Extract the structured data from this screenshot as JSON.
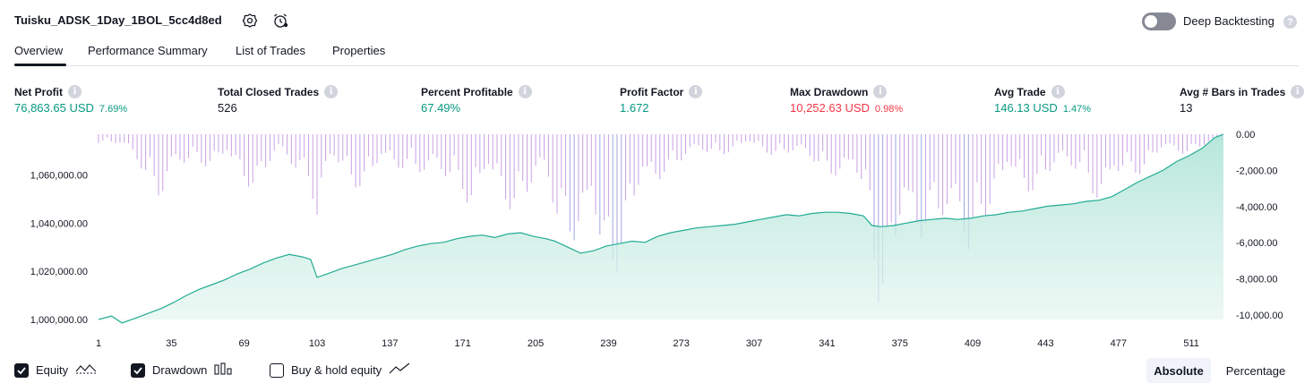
{
  "header": {
    "title": "Tuisku_ADSK_1Day_1BOL_5cc4d8ed",
    "deep_backtesting_label": "Deep Backtesting",
    "deep_backtesting_on": false
  },
  "tabs": [
    {
      "label": "Overview",
      "active": true
    },
    {
      "label": "Performance Summary",
      "active": false
    },
    {
      "label": "List of Trades",
      "active": false
    },
    {
      "label": "Properties",
      "active": false
    }
  ],
  "metrics": [
    {
      "label": "Net Profit",
      "value": "76,863.65 USD",
      "pct": "7.69%",
      "color": "#089981"
    },
    {
      "label": "Total Closed Trades",
      "value": "526",
      "pct": "",
      "color": "#131722"
    },
    {
      "label": "Percent Profitable",
      "value": "67.49%",
      "pct": "",
      "color": "#089981"
    },
    {
      "label": "Profit Factor",
      "value": "1.672",
      "pct": "",
      "color": "#089981"
    },
    {
      "label": "Max Drawdown",
      "value": "10,252.63 USD",
      "pct": "0.98%",
      "color": "#f23645"
    },
    {
      "label": "Avg Trade",
      "value": "146.13 USD",
      "pct": "1.47%",
      "color": "#089981"
    },
    {
      "label": "Avg # Bars in Trades",
      "value": "13",
      "pct": "",
      "color": "#131722"
    }
  ],
  "chart_data": {
    "type": "area",
    "x_ticks": [
      "1",
      "35",
      "69",
      "103",
      "137",
      "171",
      "205",
      "239",
      "273",
      "307",
      "341",
      "375",
      "409",
      "443",
      "477",
      "511"
    ],
    "x_range": [
      1,
      526
    ],
    "left_axis_ticks": [
      "1,060,000.00",
      "1,040,000.00",
      "1,020,000.00",
      "1,000,000.00"
    ],
    "left_ylim": [
      1000000,
      1076863.65
    ],
    "right_axis_ticks": [
      "0.00",
      "-2,000.00",
      "-4,000.00",
      "-6,000.00",
      "-8,000.00",
      "-10,000.00"
    ],
    "right_ylim": [
      -10252.63,
      0
    ],
    "colors": {
      "equity": "#22ab94",
      "equity_fill": "#cdeee6",
      "drawdown": "#c9a0e6",
      "drawdown_deep": "#9fa6e0",
      "axis_text": "#131722"
    },
    "series": [
      {
        "name": "Equity",
        "x": [
          1,
          7,
          12,
          18,
          24,
          30,
          36,
          42,
          48,
          54,
          60,
          66,
          72,
          78,
          84,
          90,
          96,
          100,
          103,
          108,
          114,
          120,
          126,
          132,
          138,
          144,
          150,
          156,
          162,
          168,
          174,
          180,
          186,
          192,
          198,
          204,
          210,
          214,
          220,
          226,
          232,
          238,
          244,
          250,
          256,
          262,
          268,
          274,
          280,
          286,
          292,
          298,
          304,
          310,
          316,
          322,
          328,
          334,
          340,
          346,
          352,
          358,
          362,
          366,
          372,
          378,
          384,
          390,
          396,
          402,
          408,
          414,
          420,
          426,
          432,
          438,
          444,
          450,
          456,
          462,
          468,
          474,
          480,
          486,
          492,
          498,
          504,
          510,
          516,
          522,
          526
        ],
        "values": [
          1000000,
          1001500,
          998500,
          1000500,
          1002500,
          1004500,
          1007000,
          1010000,
          1012500,
          1014500,
          1016500,
          1019000,
          1021000,
          1023500,
          1025500,
          1027000,
          1026000,
          1025000,
          1017500,
          1019000,
          1021000,
          1022500,
          1024000,
          1025500,
          1027000,
          1029000,
          1030500,
          1031500,
          1032000,
          1033500,
          1034500,
          1035000,
          1034000,
          1035500,
          1036000,
          1034500,
          1033500,
          1032500,
          1030000,
          1027500,
          1028500,
          1030500,
          1031500,
          1032500,
          1032000,
          1034500,
          1036000,
          1037000,
          1038000,
          1038500,
          1039000,
          1039500,
          1040500,
          1041500,
          1042500,
          1043500,
          1043000,
          1044000,
          1044500,
          1044500,
          1044000,
          1043000,
          1039000,
          1038500,
          1039000,
          1040000,
          1041000,
          1041500,
          1042000,
          1041500,
          1042000,
          1043000,
          1043500,
          1044500,
          1045000,
          1046000,
          1047000,
          1047500,
          1048000,
          1049000,
          1049500,
          1051000,
          1054000,
          1057000,
          1059500,
          1062000,
          1065500,
          1068000,
          1071000,
          1075500,
          1076864
        ]
      },
      {
        "name": "Drawdown",
        "x": [
          5,
          20,
          30,
          45,
          65,
          75,
          85,
          100,
          103,
          110,
          125,
          145,
          160,
          170,
          175,
          185,
          200,
          210,
          215,
          225,
          232,
          238,
          245,
          255,
          265,
          275,
          290,
          305,
          320,
          335,
          345,
          352,
          360,
          364,
          368,
          372,
          376,
          380,
          384,
          388,
          392,
          396,
          400,
          404,
          408,
          412,
          420,
          430,
          440,
          450,
          460,
          466,
          472,
          480,
          490,
          500,
          510,
          518,
          522
        ],
        "values": [
          -500,
          -1800,
          -4300,
          -1500,
          -2600,
          -3200,
          -1500,
          -2900,
          -5800,
          -2400,
          -3200,
          -1900,
          -3400,
          -2800,
          -4800,
          -3900,
          -4500,
          -3200,
          -5500,
          -6700,
          -8400,
          -9600,
          -6800,
          -4800,
          -2300,
          -1600,
          -1200,
          -900,
          -1300,
          -1800,
          -2600,
          -3600,
          -4300,
          -9000,
          -10252,
          -9600,
          -8500,
          -7400,
          -6600,
          -5400,
          -5100,
          -5600,
          -7600,
          -8200,
          -8800,
          -4800,
          -4200,
          -3600,
          -3100,
          -2600,
          -2100,
          -3900,
          -5200,
          -2500,
          -2100,
          -1300,
          -1100,
          -700,
          -500
        ]
      }
    ]
  },
  "legend": {
    "equity": {
      "label": "Equity",
      "checked": true
    },
    "drawdown": {
      "label": "Drawdown",
      "checked": true
    },
    "buy_hold": {
      "label": "Buy & hold equity",
      "checked": false
    }
  },
  "scale_toggle": {
    "absolute": "Absolute",
    "percentage": "Percentage",
    "selected": "Absolute"
  }
}
